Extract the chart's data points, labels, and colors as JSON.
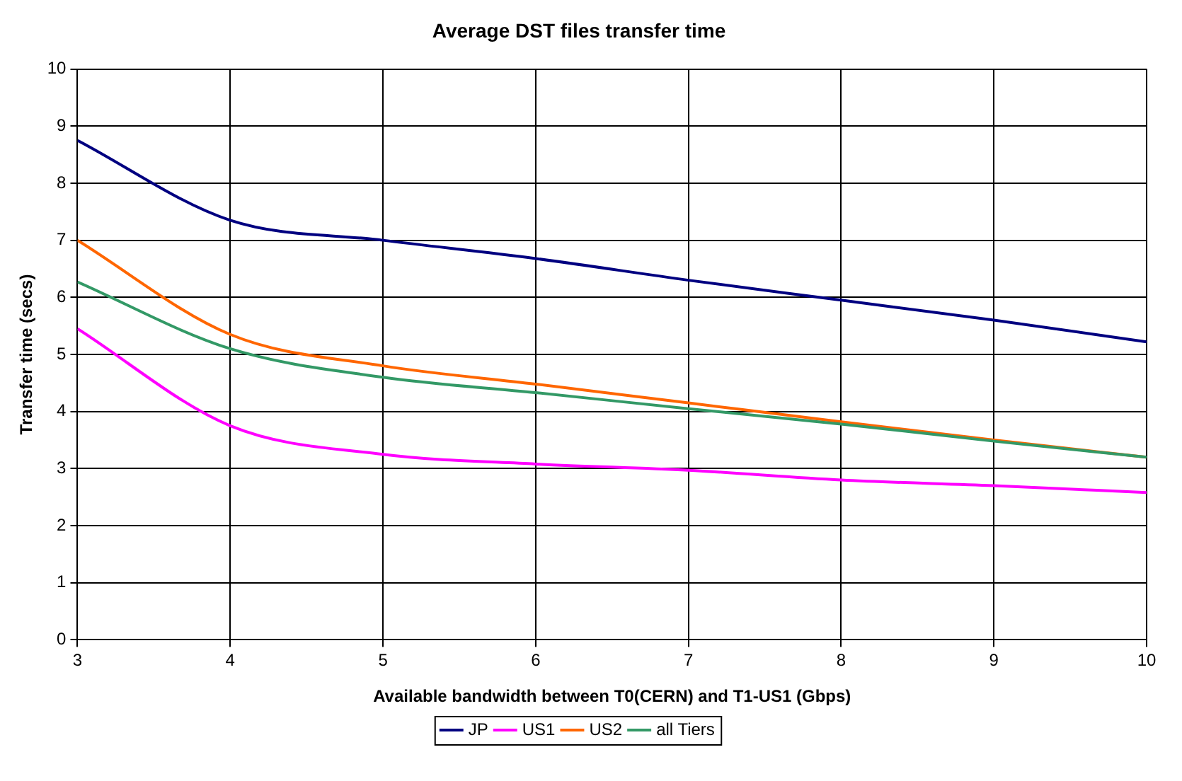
{
  "chart_data": {
    "type": "line",
    "title": "Average DST files transfer time",
    "xlabel": "Available bandwidth between T0(CERN) and T1-US1 (Gbps)",
    "ylabel": "Transfer time (secs)",
    "x": [
      3,
      4,
      5,
      6,
      7,
      8,
      9,
      10
    ],
    "series": [
      {
        "name": "JP",
        "color": "#000080",
        "values": [
          8.75,
          7.35,
          7.0,
          6.68,
          6.3,
          5.95,
          5.6,
          5.22
        ]
      },
      {
        "name": "US1",
        "color": "#ff00ff",
        "values": [
          5.45,
          3.75,
          3.25,
          3.08,
          2.97,
          2.8,
          2.7,
          2.58
        ]
      },
      {
        "name": "US2",
        "color": "#ff6600",
        "values": [
          7.0,
          5.35,
          4.8,
          4.48,
          4.15,
          3.82,
          3.5,
          3.2
        ]
      },
      {
        "name": "all Tiers",
        "color": "#339966",
        "values": [
          6.27,
          5.1,
          4.6,
          4.33,
          4.05,
          3.78,
          3.48,
          3.2
        ]
      }
    ],
    "xlim": [
      3,
      10
    ],
    "xticks": [
      3,
      4,
      5,
      6,
      7,
      8,
      9,
      10
    ],
    "ylim": [
      0,
      10
    ],
    "yticks": [
      0,
      1,
      2,
      3,
      4,
      5,
      6,
      7,
      8,
      9,
      10
    ],
    "grid": true,
    "legend": "bottom",
    "marker": "none",
    "line_style": "solid"
  }
}
